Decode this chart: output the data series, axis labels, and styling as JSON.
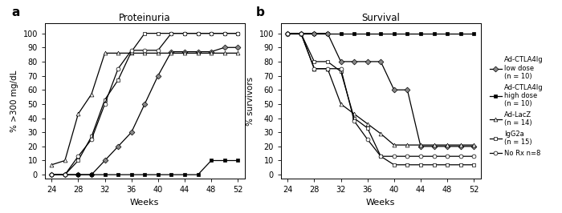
{
  "panel_a_title": "Proteinuria",
  "panel_b_title": "Survival",
  "xlabel": "Weeks",
  "ylabel_a": "% >300 mg/dL",
  "ylabel_b": "% survivors",
  "xticks": [
    24,
    28,
    32,
    36,
    40,
    44,
    48,
    52
  ],
  "yticks": [
    0,
    10,
    20,
    30,
    40,
    50,
    60,
    70,
    80,
    90,
    100
  ],
  "proteinuria": {
    "Ad_CTLA4Ig_low": {
      "x": [
        24,
        26,
        28,
        30,
        32,
        34,
        36,
        38,
        40,
        42,
        44,
        46,
        48,
        50,
        52
      ],
      "y": [
        0,
        0,
        0,
        0,
        10,
        20,
        30,
        50,
        70,
        87,
        87,
        87,
        87,
        90,
        90
      ],
      "color": "black",
      "marker": "D",
      "markerfacecolor": "#888888"
    },
    "Ad_CTLA4Ig_high": {
      "x": [
        24,
        26,
        28,
        30,
        32,
        34,
        36,
        38,
        40,
        42,
        44,
        46,
        48,
        50,
        52
      ],
      "y": [
        0,
        0,
        0,
        0,
        0,
        0,
        0,
        0,
        0,
        0,
        0,
        0,
        10,
        10,
        10
      ],
      "color": "black",
      "marker": "s",
      "markerfacecolor": "black"
    },
    "Ad_LacZ": {
      "x": [
        24,
        26,
        28,
        30,
        32,
        34,
        36,
        38,
        40,
        42,
        44,
        46,
        48,
        50,
        52
      ],
      "y": [
        7,
        10,
        43,
        57,
        86,
        86,
        86,
        86,
        86,
        86,
        86,
        86,
        86,
        86,
        86
      ],
      "color": "black",
      "marker": "^",
      "markerfacecolor": "white"
    },
    "IgG2a": {
      "x": [
        24,
        26,
        28,
        30,
        32,
        34,
        36,
        38,
        40,
        42,
        44,
        46,
        48,
        50,
        52
      ],
      "y": [
        0,
        0,
        10,
        27,
        53,
        67,
        87,
        100,
        100,
        100,
        100,
        100,
        100,
        100,
        100
      ],
      "color": "black",
      "marker": "s",
      "markerfacecolor": "white"
    },
    "No_Rx": {
      "x": [
        24,
        26,
        28,
        30,
        32,
        34,
        36,
        38,
        40,
        42,
        44,
        46,
        48,
        50,
        52
      ],
      "y": [
        0,
        0,
        13,
        25,
        50,
        75,
        88,
        88,
        88,
        100,
        100,
        100,
        100,
        100,
        100
      ],
      "color": "black",
      "marker": "o",
      "markerfacecolor": "white"
    }
  },
  "survival": {
    "Ad_CTLA4Ig_high": {
      "x": [
        24,
        26,
        28,
        30,
        32,
        34,
        36,
        38,
        40,
        42,
        44,
        46,
        48,
        50,
        52
      ],
      "y": [
        100,
        100,
        100,
        100,
        100,
        100,
        100,
        100,
        100,
        100,
        100,
        100,
        100,
        100,
        100
      ],
      "color": "black",
      "marker": "s",
      "markerfacecolor": "black"
    },
    "Ad_CTLA4Ig_low": {
      "x": [
        24,
        26,
        28,
        30,
        32,
        34,
        36,
        38,
        40,
        42,
        44,
        46,
        48,
        50,
        52
      ],
      "y": [
        100,
        100,
        100,
        100,
        80,
        80,
        80,
        80,
        60,
        60,
        20,
        20,
        20,
        20,
        20
      ],
      "color": "black",
      "marker": "D",
      "markerfacecolor": "#888888"
    },
    "Ad_LacZ": {
      "x": [
        24,
        26,
        28,
        30,
        32,
        34,
        36,
        38,
        40,
        42,
        44,
        46,
        48,
        50,
        52
      ],
      "y": [
        100,
        100,
        75,
        75,
        50,
        43,
        36,
        29,
        21,
        21,
        21,
        21,
        21,
        21,
        21
      ],
      "color": "black",
      "marker": "^",
      "markerfacecolor": "white"
    },
    "IgG2a": {
      "x": [
        24,
        26,
        28,
        30,
        32,
        34,
        36,
        38,
        40,
        42,
        44,
        46,
        48,
        50,
        52
      ],
      "y": [
        100,
        100,
        80,
        80,
        73,
        40,
        33,
        13,
        7,
        7,
        7,
        7,
        7,
        7,
        7
      ],
      "color": "black",
      "marker": "s",
      "markerfacecolor": "white"
    },
    "No_Rx": {
      "x": [
        24,
        26,
        28,
        30,
        32,
        34,
        36,
        38,
        40,
        42,
        44,
        46,
        48,
        50,
        52
      ],
      "y": [
        100,
        100,
        75,
        75,
        75,
        38,
        25,
        13,
        13,
        13,
        13,
        13,
        13,
        13,
        13
      ],
      "color": "black",
      "marker": "o",
      "markerfacecolor": "white"
    }
  },
  "legend_entries": [
    {
      "label": "Ad-CTLA4Ig\nlow dose\n(n = 10)",
      "marker": "D",
      "color": "black",
      "mfc": "#888888"
    },
    {
      "label": "Ad-CTLA4Ig\nhigh dose\n(n = 10)",
      "marker": "s",
      "color": "black",
      "mfc": "black"
    },
    {
      "label": "Ad-LacZ\n(n = 14)",
      "marker": "^",
      "color": "black",
      "mfc": "white"
    },
    {
      "label": "IgG2a\n(n = 15)",
      "marker": "s",
      "color": "black",
      "mfc": "white"
    },
    {
      "label": "No Rx n=8",
      "marker": "o",
      "color": "black",
      "mfc": "white"
    }
  ],
  "background_color": "white"
}
